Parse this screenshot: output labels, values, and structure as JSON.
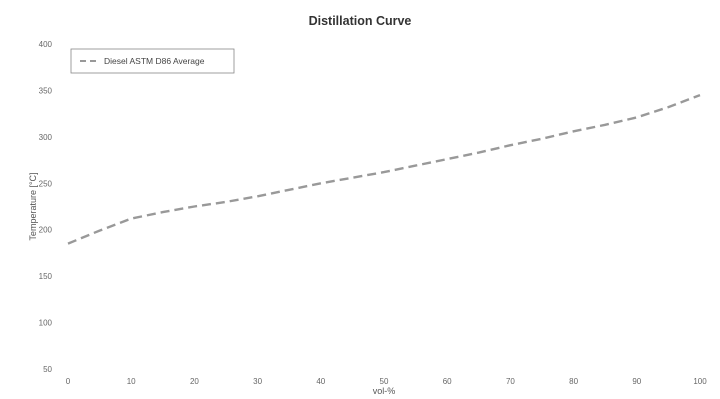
{
  "chart_data": {
    "type": "line",
    "title": "Distillation Curve",
    "xlabel": "vol-%",
    "ylabel": "Temperature [°C]",
    "xlim": [
      0,
      100
    ],
    "ylim": [
      50,
      400
    ],
    "xticks": [
      0,
      10,
      20,
      30,
      40,
      50,
      60,
      70,
      80,
      90,
      100
    ],
    "xtick_labels": [
      "0",
      "10",
      "20",
      "30",
      "40",
      "50",
      "60",
      "70",
      "80",
      "90",
      "100"
    ],
    "yticks": [
      50,
      100,
      150,
      200,
      250,
      300,
      350,
      400
    ],
    "ytick_labels": [
      "50",
      "100",
      "150",
      "200",
      "250",
      "300",
      "350",
      "400"
    ],
    "grid": false,
    "legend_position": "top-left",
    "series": [
      {
        "name": "Diesel ASTM D86 Average",
        "color": "#999999",
        "line_style": "dashed",
        "x": [
          0,
          5,
          10,
          15,
          20,
          25,
          30,
          35,
          40,
          45,
          50,
          55,
          60,
          65,
          70,
          75,
          80,
          85,
          90,
          95,
          100
        ],
        "y": [
          185,
          199,
          212,
          219,
          225,
          230,
          236,
          243,
          250,
          256,
          262,
          269,
          276,
          283,
          291,
          298,
          306,
          313,
          321,
          332,
          345
        ]
      }
    ]
  }
}
